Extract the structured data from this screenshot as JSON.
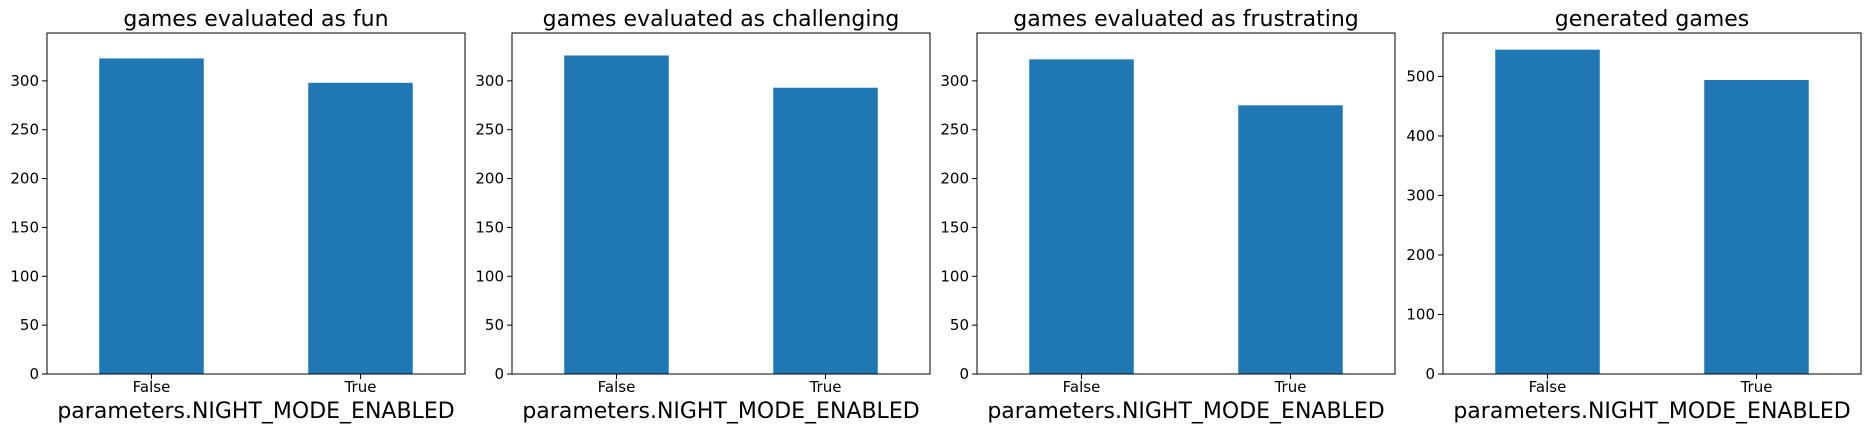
{
  "chart_data": [
    {
      "type": "bar",
      "title": "games evaluated as fun",
      "xlabel": "parameters.NIGHT_MODE_ENABLED",
      "ylabel": "",
      "categories": [
        "False",
        "True"
      ],
      "values": [
        323,
        298
      ],
      "ylim": [
        0,
        349
      ],
      "yticks": [
        0,
        50,
        100,
        150,
        200,
        250,
        300
      ],
      "color": "#1f77b4",
      "grid": false
    },
    {
      "type": "bar",
      "title": "games evaluated as challenging",
      "xlabel": "parameters.NIGHT_MODE_ENABLED",
      "ylabel": "",
      "categories": [
        "False",
        "True"
      ],
      "values": [
        326,
        293
      ],
      "ylim": [
        0,
        349
      ],
      "yticks": [
        0,
        50,
        100,
        150,
        200,
        250,
        300
      ],
      "color": "#1f77b4",
      "grid": false
    },
    {
      "type": "bar",
      "title": "games evaluated as frustrating",
      "xlabel": "parameters.NIGHT_MODE_ENABLED",
      "ylabel": "",
      "categories": [
        "False",
        "True"
      ],
      "values": [
        322,
        275
      ],
      "ylim": [
        0,
        349
      ],
      "yticks": [
        0,
        50,
        100,
        150,
        200,
        250,
        300
      ],
      "color": "#1f77b4",
      "grid": false
    },
    {
      "type": "bar",
      "title": "generated games",
      "xlabel": "parameters.NIGHT_MODE_ENABLED",
      "ylabel": "",
      "categories": [
        "False",
        "True"
      ],
      "values": [
        545,
        494
      ],
      "ylim": [
        0,
        573
      ],
      "yticks": [
        0,
        100,
        200,
        300,
        400,
        500
      ],
      "color": "#1f77b4",
      "grid": false
    }
  ]
}
